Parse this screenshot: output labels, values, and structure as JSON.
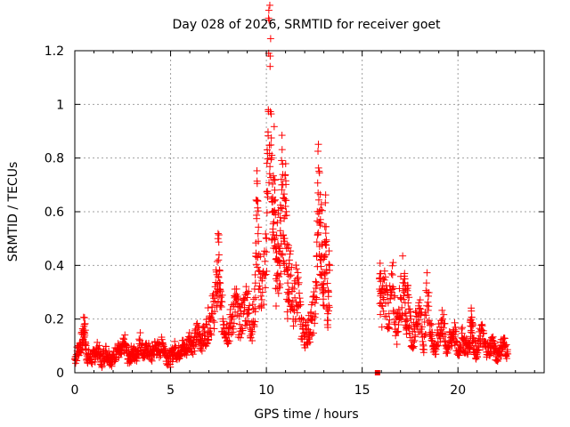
{
  "chart_data": {
    "type": "scatter",
    "title": "Day 028 of 2026, SRMTID for receiver goet",
    "xlabel": "GPS time / hours",
    "ylabel": "SRMTID / TECUs",
    "xlim": [
      0,
      24.5
    ],
    "ylim": [
      0,
      1.2
    ],
    "xticks": [
      0,
      5,
      10,
      15,
      20
    ],
    "xtick_labels": [
      "0",
      "5",
      "10",
      "15",
      "20"
    ],
    "yticks": [
      0,
      0.2,
      0.4,
      0.6,
      0.8,
      1,
      1.2
    ],
    "ytick_labels": [
      "0",
      "0.2",
      "0.4",
      "0.6",
      "0.8",
      "1",
      "1.2"
    ],
    "grid": true,
    "marker_color": "#ff0000",
    "marker": "plus",
    "series": [
      {
        "name": "SRMTID",
        "x": [
          0.0,
          0.2,
          0.4,
          0.5,
          0.6,
          0.8,
          1.0,
          1.2,
          1.4,
          1.6,
          1.8,
          2.0,
          2.2,
          2.4,
          2.6,
          2.8,
          3.0,
          3.2,
          3.4,
          3.6,
          3.8,
          4.0,
          4.2,
          4.4,
          4.6,
          4.8,
          5.0,
          5.2,
          5.4,
          5.6,
          5.8,
          6.0,
          6.2,
          6.4,
          6.6,
          6.8,
          7.0,
          7.2,
          7.4,
          7.5,
          7.6,
          7.8,
          8.0,
          8.2,
          8.4,
          8.6,
          8.8,
          9.0,
          9.2,
          9.4,
          9.5,
          9.6,
          9.8,
          10.0,
          10.1,
          10.2,
          10.3,
          10.4,
          10.5,
          10.6,
          10.7,
          10.8,
          10.9,
          11.0,
          11.1,
          11.2,
          11.4,
          11.6,
          11.8,
          12.0,
          12.2,
          12.4,
          12.6,
          12.7,
          12.8,
          12.9,
          13.0,
          13.1,
          13.2,
          13.3,
          15.8,
          15.9,
          16.0,
          16.2,
          16.4,
          16.6,
          16.8,
          17.0,
          17.2,
          17.3,
          17.4,
          17.6,
          17.8,
          18.0,
          18.2,
          18.4,
          18.6,
          18.8,
          19.0,
          19.2,
          19.4,
          19.6,
          19.8,
          20.0,
          20.2,
          20.4,
          20.6,
          20.7,
          20.8,
          21.0,
          21.2,
          21.4,
          21.6,
          21.8,
          22.0,
          22.2,
          22.4,
          22.6
        ],
        "y": [
          0.05,
          0.09,
          0.12,
          0.18,
          0.07,
          0.05,
          0.06,
          0.09,
          0.04,
          0.08,
          0.06,
          0.05,
          0.09,
          0.07,
          0.11,
          0.05,
          0.08,
          0.06,
          0.12,
          0.07,
          0.09,
          0.06,
          0.1,
          0.08,
          0.11,
          0.06,
          0.05,
          0.09,
          0.07,
          0.1,
          0.08,
          0.13,
          0.1,
          0.15,
          0.12,
          0.14,
          0.19,
          0.22,
          0.3,
          0.42,
          0.25,
          0.18,
          0.15,
          0.2,
          0.26,
          0.18,
          0.22,
          0.28,
          0.16,
          0.24,
          0.64,
          0.38,
          0.3,
          0.45,
          0.98,
          1.18,
          0.6,
          0.72,
          0.35,
          0.48,
          0.4,
          0.7,
          0.5,
          0.62,
          0.3,
          0.42,
          0.2,
          0.35,
          0.18,
          0.14,
          0.16,
          0.2,
          0.28,
          0.67,
          0.55,
          0.48,
          0.3,
          0.52,
          0.22,
          0.4,
          0.0,
          0.35,
          0.25,
          0.3,
          0.22,
          0.32,
          0.15,
          0.28,
          0.36,
          0.2,
          0.26,
          0.12,
          0.18,
          0.24,
          0.1,
          0.3,
          0.15,
          0.08,
          0.14,
          0.2,
          0.09,
          0.12,
          0.16,
          0.07,
          0.13,
          0.1,
          0.09,
          0.23,
          0.12,
          0.06,
          0.16,
          0.1,
          0.08,
          0.12,
          0.06,
          0.09,
          0.11,
          0.07
        ]
      }
    ]
  }
}
